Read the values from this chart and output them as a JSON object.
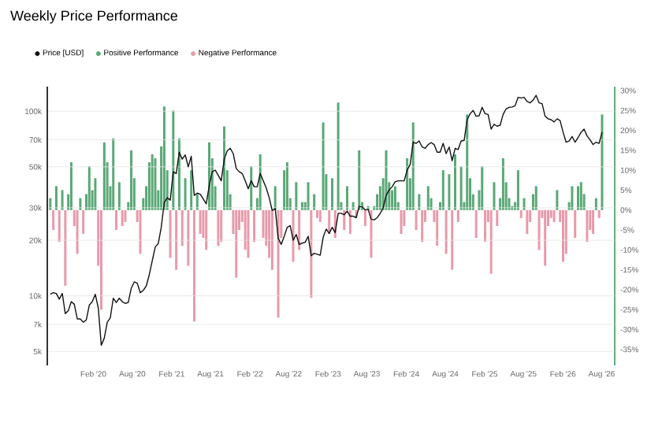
{
  "chart_data": {
    "type": "bar",
    "title": "Weekly Price Performance",
    "x": [
      "2019-07-15",
      "2019-07-29",
      "2019-08-12",
      "2019-08-26",
      "2019-09-09",
      "2019-09-23",
      "2019-10-07",
      "2019-10-21",
      "2019-11-04",
      "2019-11-18",
      "2019-12-02",
      "2019-12-16",
      "2019-12-30",
      "2020-01-13",
      "2020-01-27",
      "2020-02-10",
      "2020-02-24",
      "2020-03-09",
      "2020-03-23",
      "2020-04-06",
      "2020-04-20",
      "2020-05-04",
      "2020-05-18",
      "2020-06-01",
      "2020-06-15",
      "2020-06-29",
      "2020-07-13",
      "2020-07-27",
      "2020-08-10",
      "2020-08-24",
      "2020-09-07",
      "2020-09-21",
      "2020-10-05",
      "2020-10-19",
      "2020-11-02",
      "2020-11-16",
      "2020-11-30",
      "2020-12-14",
      "2020-12-28",
      "2021-01-11",
      "2021-01-25",
      "2021-02-08",
      "2021-02-22",
      "2021-03-08",
      "2021-03-22",
      "2021-04-05",
      "2021-04-19",
      "2021-05-03",
      "2021-05-17",
      "2021-05-31",
      "2021-06-14",
      "2021-06-28",
      "2021-07-12",
      "2021-07-26",
      "2021-08-09",
      "2021-08-23",
      "2021-09-06",
      "2021-09-20",
      "2021-10-04",
      "2021-10-18",
      "2021-11-01",
      "2021-11-15",
      "2021-11-29",
      "2021-12-13",
      "2021-12-27",
      "2022-01-10",
      "2022-01-24",
      "2022-02-07",
      "2022-02-21",
      "2022-03-07",
      "2022-03-21",
      "2022-04-04",
      "2022-04-18",
      "2022-05-02",
      "2022-05-16",
      "2022-05-30",
      "2022-06-13",
      "2022-06-27",
      "2022-07-11",
      "2022-07-25",
      "2022-08-08",
      "2022-08-22",
      "2022-09-05",
      "2022-09-19",
      "2022-10-03",
      "2022-10-17",
      "2022-10-31",
      "2022-11-14",
      "2022-11-28",
      "2022-12-12",
      "2022-12-26",
      "2023-01-09",
      "2023-01-23",
      "2023-02-06",
      "2023-02-20",
      "2023-03-06",
      "2023-03-20",
      "2023-04-03",
      "2023-04-17",
      "2023-05-01",
      "2023-05-15",
      "2023-05-29",
      "2023-06-12",
      "2023-06-26",
      "2023-07-10",
      "2023-07-24",
      "2023-08-07",
      "2023-08-21",
      "2023-09-04",
      "2023-09-18",
      "2023-10-02",
      "2023-10-16",
      "2023-10-30",
      "2023-11-13",
      "2023-11-27",
      "2023-12-11",
      "2023-12-25",
      "2024-01-08",
      "2024-01-22",
      "2024-02-05",
      "2024-02-19",
      "2024-03-04",
      "2024-03-18",
      "2024-04-01",
      "2024-04-15",
      "2024-04-29",
      "2024-05-13",
      "2024-05-27",
      "2024-06-10",
      "2024-06-24",
      "2024-07-08",
      "2024-07-22",
      "2024-08-05",
      "2024-08-19",
      "2024-09-02",
      "2024-09-16",
      "2024-09-30",
      "2024-10-14",
      "2024-10-28",
      "2024-11-11",
      "2024-11-25",
      "2024-12-09",
      "2024-12-23",
      "2025-01-06",
      "2025-01-20",
      "2025-02-03",
      "2025-02-17",
      "2025-03-03",
      "2025-03-17",
      "2025-03-31",
      "2025-04-14",
      "2025-04-28",
      "2025-05-12",
      "2025-05-26",
      "2025-06-09",
      "2025-06-23",
      "2025-07-07",
      "2025-07-21",
      "2025-08-04",
      "2025-08-18",
      "2025-09-01",
      "2025-09-15",
      "2025-09-29",
      "2025-10-13",
      "2025-10-27",
      "2025-11-10",
      "2025-11-24",
      "2025-12-08",
      "2025-12-22",
      "2026-01-05",
      "2026-01-19",
      "2026-02-02",
      "2026-02-16",
      "2026-03-02",
      "2026-03-16",
      "2026-03-30",
      "2026-04-13",
      "2026-04-27",
      "2026-05-11",
      "2026-05-25",
      "2026-06-08",
      "2026-06-22",
      "2026-07-06",
      "2026-07-20",
      "2026-08-03"
    ],
    "series": [
      {
        "name": "Price [USD]",
        "type": "line",
        "color": "#111111",
        "values": [
          10200,
          10400,
          10300,
          9600,
          10300,
          8000,
          8300,
          9300,
          9000,
          7500,
          7500,
          7200,
          7400,
          8900,
          9300,
          10200,
          8600,
          5400,
          5900,
          7200,
          7600,
          9700,
          9200,
          9700,
          9300,
          9100,
          9200,
          11000,
          11900,
          11700,
          10400,
          10700,
          11300,
          13000,
          15500,
          18400,
          19200,
          23500,
          32000,
          34000,
          33000,
          47000,
          46000,
          60000,
          55000,
          58000,
          50000,
          57000,
          35000,
          36000,
          35500,
          33500,
          31500,
          39500,
          47000,
          48000,
          45000,
          42000,
          55000,
          61000,
          63000,
          59000,
          49000,
          47000,
          46000,
          42000,
          38000,
          42000,
          39000,
          39000,
          46000,
          42000,
          38500,
          34000,
          29000,
          29700,
          20500,
          19000,
          21000,
          23500,
          24000,
          20000,
          21500,
          19000,
          19300,
          19500,
          21000,
          16500,
          17000,
          16800,
          16600,
          20800,
          23000,
          21800,
          23500,
          22000,
          28000,
          28000,
          27500,
          28800,
          27000,
          27000,
          26500,
          30500,
          30300,
          29200,
          29400,
          26000,
          25800,
          26500,
          27900,
          30000,
          35000,
          37500,
          39000,
          41500,
          42000,
          42000,
          42000,
          48000,
          51500,
          68000,
          67000,
          69000,
          64000,
          63000,
          66000,
          67700,
          66000,
          60000,
          60000,
          67000,
          59000,
          64000,
          54000,
          63000,
          62000,
          69000,
          69500,
          90000,
          97000,
          101000,
          94000,
          94500,
          105000,
          97000,
          96000,
          80000,
          85000,
          83000,
          84000,
          96000,
          103000,
          105000,
          105500,
          107000,
          119000,
          118000,
          119000,
          113000,
          111000,
          115000,
          122000,
          111000,
          110000,
          94000,
          91000,
          90000,
          87500,
          91000,
          89000,
          77000,
          68000,
          69000,
          73000,
          68000,
          72000,
          77000,
          80000,
          73500,
          70000,
          66000,
          68000,
          67000,
          77000
        ]
      },
      {
        "name": "Positive Performance",
        "axis": "y2",
        "color": "#5aa876",
        "values": [
          3,
          null,
          6,
          null,
          5,
          null,
          4,
          12,
          null,
          null,
          3,
          null,
          4,
          11,
          5,
          8,
          null,
          null,
          17,
          12,
          6,
          18,
          null,
          7,
          null,
          null,
          2,
          15,
          8,
          null,
          null,
          3,
          6,
          12,
          14,
          13,
          5,
          16,
          26,
          10,
          null,
          25,
          null,
          18,
          null,
          8,
          null,
          10,
          null,
          4,
          null,
          null,
          null,
          17,
          13,
          6,
          null,
          null,
          21,
          10,
          4,
          null,
          null,
          null,
          null,
          null,
          null,
          11,
          null,
          3,
          14,
          null,
          null,
          null,
          null,
          6,
          null,
          null,
          10,
          12,
          3,
          null,
          7,
          null,
          2,
          2,
          7,
          null,
          4,
          null,
          null,
          22,
          9,
          null,
          8,
          null,
          27,
          2,
          null,
          6,
          null,
          2,
          null,
          15,
          2,
          null,
          1,
          null,
          1,
          4,
          6,
          8,
          15,
          7,
          5,
          6,
          2,
          null,
          null,
          13,
          8,
          22,
          null,
          4,
          null,
          null,
          6,
          3,
          null,
          null,
          2,
          10,
          null,
          9,
          null,
          14,
          null,
          11,
          2,
          24,
          8,
          4,
          null,
          5,
          11,
          null,
          null,
          null,
          7,
          null,
          3,
          13,
          7,
          3,
          1,
          2,
          10,
          null,
          3,
          null,
          null,
          4,
          6,
          null,
          null,
          null,
          null,
          null,
          null,
          5,
          null,
          null,
          null,
          2,
          6,
          null,
          6,
          7,
          4,
          null,
          null,
          null,
          3,
          null,
          24
        ]
      },
      {
        "name": "Negative Performance",
        "axis": "y2",
        "color": "#e89aaa",
        "values": [
          null,
          -5,
          null,
          -8,
          null,
          -19,
          null,
          null,
          -4,
          -11,
          null,
          -6,
          null,
          null,
          null,
          null,
          -14,
          -25,
          null,
          null,
          null,
          null,
          -5,
          null,
          -4,
          -3,
          null,
          null,
          null,
          -3,
          -11,
          null,
          null,
          null,
          null,
          null,
          null,
          null,
          null,
          null,
          -12,
          null,
          -15,
          null,
          -9,
          null,
          -14,
          null,
          -28,
          null,
          -6,
          -7,
          -10,
          null,
          null,
          null,
          -9,
          -8,
          null,
          null,
          null,
          -6,
          -17,
          -5,
          -3,
          -10,
          -12,
          null,
          -8,
          null,
          null,
          -7,
          -9,
          -12,
          -15,
          null,
          -27,
          -7,
          null,
          null,
          null,
          -13,
          null,
          -10,
          null,
          null,
          null,
          -22,
          null,
          -2,
          -3,
          null,
          null,
          -6,
          null,
          -7,
          null,
          null,
          -5,
          null,
          -6,
          null,
          -2,
          null,
          null,
          -4,
          null,
          -12,
          null,
          null,
          null,
          null,
          null,
          null,
          null,
          null,
          null,
          -6,
          -4,
          null,
          null,
          null,
          -5,
          null,
          -8,
          -3,
          null,
          null,
          -3,
          -9,
          null,
          null,
          -11,
          null,
          -15,
          null,
          -3,
          null,
          null,
          null,
          null,
          null,
          -7,
          null,
          null,
          -8,
          -3,
          -16,
          null,
          -4,
          null,
          null,
          null,
          null,
          null,
          null,
          null,
          -2,
          null,
          -6,
          -3,
          null,
          null,
          -10,
          -2,
          -14,
          -4,
          -2,
          -3,
          null,
          -3,
          -13,
          -11,
          null,
          null,
          -7,
          null,
          null,
          null,
          -8,
          -5,
          -6,
          null,
          -2,
          null
        ]
      }
    ],
    "xlim": [
      "2019-07-01",
      "2026-10-01"
    ],
    "xticks": [
      {
        "value": "2020-02-01",
        "label": "Feb '20"
      },
      {
        "value": "2020-08-01",
        "label": "Aug '20"
      },
      {
        "value": "2021-02-01",
        "label": "Feb '21"
      },
      {
        "value": "2021-08-01",
        "label": "Aug '21"
      },
      {
        "value": "2022-02-01",
        "label": "Feb '22"
      },
      {
        "value": "2022-08-01",
        "label": "Aug '22"
      },
      {
        "value": "2023-02-01",
        "label": "Feb '23"
      },
      {
        "value": "2023-08-01",
        "label": "Aug '23"
      },
      {
        "value": "2024-02-01",
        "label": "Feb '24"
      },
      {
        "value": "2024-08-01",
        "label": "Aug '24"
      },
      {
        "value": "2025-02-01",
        "label": "Feb '25"
      },
      {
        "value": "2025-08-01",
        "label": "Aug '25"
      },
      {
        "value": "2026-02-01",
        "label": "Feb '26"
      },
      {
        "value": "2026-08-01",
        "label": "Aug '26"
      }
    ],
    "ylim": [
      4200,
      136000
    ],
    "yticks": [
      {
        "value": 5000,
        "label": "5k"
      },
      {
        "value": 7000,
        "label": "7k"
      },
      {
        "value": 10000,
        "label": "10k"
      },
      {
        "value": 20000,
        "label": "20k"
      },
      {
        "value": 30000,
        "label": "30k"
      },
      {
        "value": 50000,
        "label": "50k"
      },
      {
        "value": 70000,
        "label": "70k"
      },
      {
        "value": 100000,
        "label": "100k"
      }
    ],
    "y2lim": [
      -39,
      31
    ],
    "y2ticks": [
      {
        "value": 30,
        "label": "30%"
      },
      {
        "value": 25,
        "label": "25%"
      },
      {
        "value": 20,
        "label": "20%"
      },
      {
        "value": 15,
        "label": "15%"
      },
      {
        "value": 10,
        "label": "10%"
      },
      {
        "value": 5,
        "label": "5%"
      },
      {
        "value": 0,
        "label": "0%"
      },
      {
        "value": -5,
        "label": "-5%"
      },
      {
        "value": -10,
        "label": "-10%"
      },
      {
        "value": -15,
        "label": "-15%"
      },
      {
        "value": -20,
        "label": "-20%"
      },
      {
        "value": -25,
        "label": "-25%"
      },
      {
        "value": -30,
        "label": "-30%"
      },
      {
        "value": -35,
        "label": "-35%"
      }
    ],
    "log": "y",
    "grid": "y",
    "legend": "top left",
    "marker": "none",
    "line_style": "solid"
  }
}
